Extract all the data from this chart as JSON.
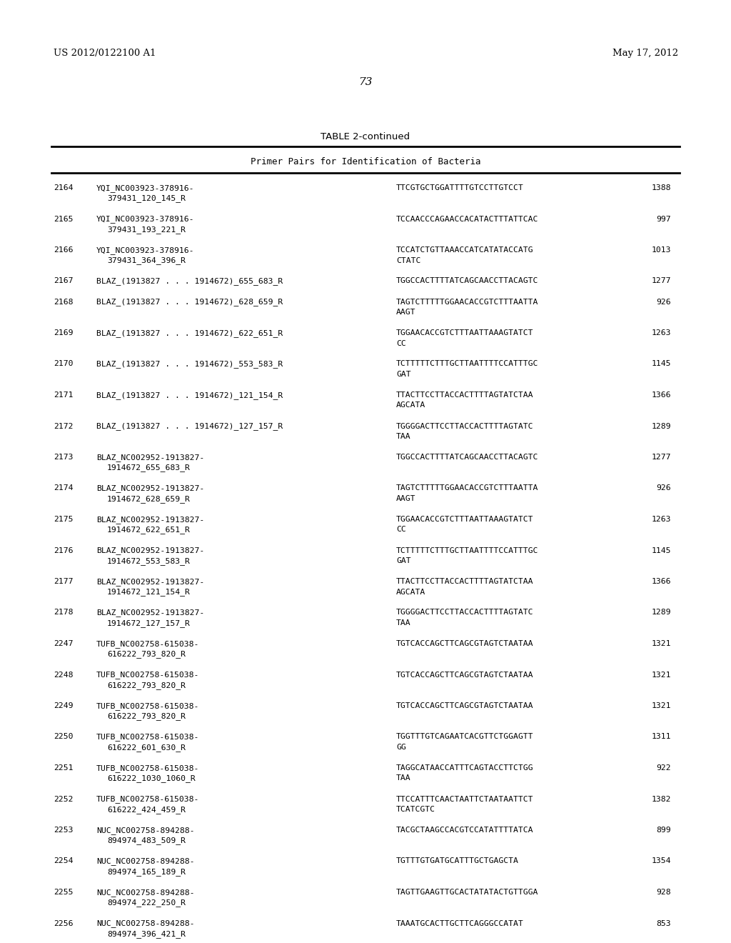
{
  "header_left": "US 2012/0122100 A1",
  "header_right": "May 17, 2012",
  "page_number": "73",
  "table_title": "TABLE 2-continued",
  "table_subtitle": "Primer Pairs for Identification of Bacteria",
  "rows": [
    [
      "2164",
      "YQI_NC003923-378916-",
      "379431_120_145_R",
      "TTCGTGCTGGATTTTGTCCTTGTCCT",
      "",
      "1388"
    ],
    [
      "2165",
      "YQI_NC003923-378916-",
      "379431_193_221_R",
      "TCCAACCCAGAACCACATACTTTATTCAC",
      "",
      "997"
    ],
    [
      "2166",
      "YQI_NC003923-378916-",
      "379431_364_396_R",
      "TCCATCTGTTAAACCATCATATACCATG",
      "CTATC",
      "1013"
    ],
    [
      "2167",
      "BLAZ_(1913827 . . . 1914672)_655_683_R",
      "",
      "TGGCCACTTTTATCAGCAACCTTACAGTC",
      "",
      "1277"
    ],
    [
      "2168",
      "BLAZ_(1913827 . . . 1914672)_628_659_R",
      "",
      "TAGTCTTTTTGGAACACCGTCTTTAATTA",
      "AAGT",
      "926"
    ],
    [
      "2169",
      "BLAZ_(1913827 . . . 1914672)_622_651_R",
      "",
      "TGGAACACCGTCTTTAATTAAAGTATCT",
      "CC",
      "1263"
    ],
    [
      "2170",
      "BLAZ_(1913827 . . . 1914672)_553_583_R",
      "",
      "TCTTTTTCTTTGCTTAATTTTCCATTTGC",
      "GAT",
      "1145"
    ],
    [
      "2171",
      "BLAZ_(1913827 . . . 1914672)_121_154_R",
      "",
      "TTACTTCCTTACCACTTTTAGTATCTAA",
      "AGCATA",
      "1366"
    ],
    [
      "2172",
      "BLAZ_(1913827 . . . 1914672)_127_157_R",
      "",
      "TGGGGACTTCCTTACCACTTTTAGTATC",
      "TAA",
      "1289"
    ],
    [
      "2173",
      "BLAZ_NC002952-1913827-",
      "1914672_655_683_R",
      "TGGCCACTTTTATCAGCAACCTTACAGTC",
      "",
      "1277"
    ],
    [
      "2174",
      "BLAZ_NC002952-1913827-",
      "1914672_628_659_R",
      "TAGTCTTTTTGGAACACCGTCTTTAATTA",
      "AAGT",
      "926"
    ],
    [
      "2175",
      "BLAZ_NC002952-1913827-",
      "1914672_622_651_R",
      "TGGAACACCGTCTTTAATTAAAGTATCT",
      "CC",
      "1263"
    ],
    [
      "2176",
      "BLAZ_NC002952-1913827-",
      "1914672_553_583_R",
      "TCTTTTTCTTTGCTTAATTTTCCATTTGC",
      "GAT",
      "1145"
    ],
    [
      "2177",
      "BLAZ_NC002952-1913827-",
      "1914672_121_154_R",
      "TTACTTCCTTACCACTTTTAGTATCTAA",
      "AGCATA",
      "1366"
    ],
    [
      "2178",
      "BLAZ_NC002952-1913827-",
      "1914672_127_157_R",
      "TGGGGACTTCCTTACCACTTTTAGTATC",
      "TAA",
      "1289"
    ],
    [
      "2247",
      "TUFB_NC002758-615038-",
      "616222_793_820_R",
      "TGTCACCAGCTTCAGCGTAGTCTAATAA",
      "",
      "1321"
    ],
    [
      "2248",
      "TUFB_NC002758-615038-",
      "616222_793_820_R",
      "TGTCACCAGCTTCAGCGTAGTCTAATAA",
      "",
      "1321"
    ],
    [
      "2249",
      "TUFB_NC002758-615038-",
      "616222_793_820_R",
      "TGTCACCAGCTTCAGCGTAGTCTAATAA",
      "",
      "1321"
    ],
    [
      "2250",
      "TUFB_NC002758-615038-",
      "616222_601_630_R",
      "TGGTTTGTCAGAATCACGTTCTGGAGTT",
      "GG",
      "1311"
    ],
    [
      "2251",
      "TUFB_NC002758-615038-",
      "616222_1030_1060_R",
      "TAGGCATAACCATTTCAGTACCTTCTGG",
      "TAA",
      "922"
    ],
    [
      "2252",
      "TUFB_NC002758-615038-",
      "616222_424_459_R",
      "TTCCATTTCAACTAATTCTAATAATTCT",
      "TCATCGTC",
      "1382"
    ],
    [
      "2253",
      "NUC_NC002758-894288-",
      "894974_483_509_R",
      "TACGCTAAGCCACGTCCATATTTTATCA",
      "",
      "899"
    ],
    [
      "2254",
      "NUC_NC002758-894288-",
      "894974_165_189_R",
      "TGTTTGTGATGCATTTGCTGAGCTA",
      "",
      "1354"
    ],
    [
      "2255",
      "NUC_NC002758-894288-",
      "894974_222_250_R",
      "TAGTTGAAGTTGCACTATATACTGTTGGA",
      "",
      "928"
    ],
    [
      "2256",
      "NUC_NC002758-894288-",
      "894974_396_421_R",
      "TAAATGCACTTGCTTCAGGGCCATAT",
      "",
      "853"
    ]
  ],
  "bg_color": "#ffffff",
  "text_color": "#000000"
}
